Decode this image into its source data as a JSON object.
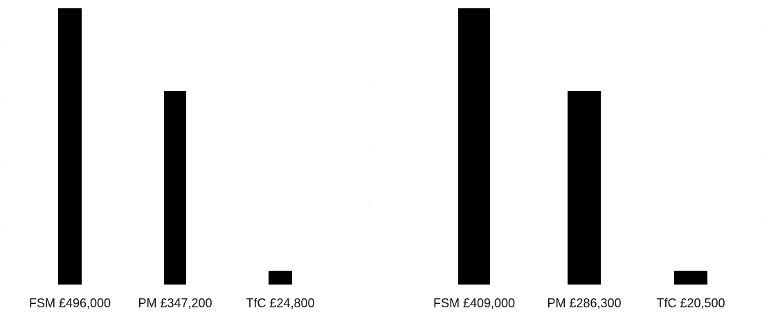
{
  "chart_data": [
    {
      "type": "bar",
      "categories": [
        "FSM £496,000",
        "PM £347,200",
        "TfC £24,800"
      ],
      "values": [
        496000,
        347200,
        24800
      ],
      "title": "",
      "xlabel": "",
      "ylabel": "",
      "ylim": [
        0,
        496000
      ],
      "grid": false,
      "bar_color": "#000000"
    },
    {
      "type": "bar",
      "categories": [
        "FSM £409,000",
        "PM £286,300",
        "TfC £20,500"
      ],
      "values": [
        409000,
        286300,
        20500
      ],
      "title": "",
      "xlabel": "",
      "ylabel": "",
      "ylim": [
        0,
        409000
      ],
      "grid": false,
      "bar_color": "#000000"
    }
  ]
}
